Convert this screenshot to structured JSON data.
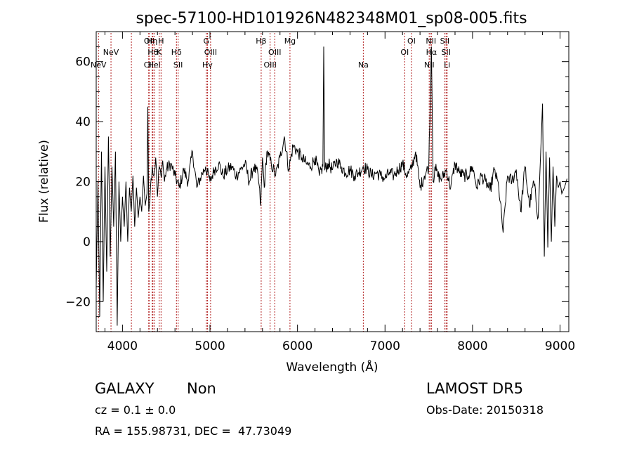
{
  "chart_data": {
    "type": "line",
    "title": "spec-57100-HD101926N482348M01_sp08-005.fits",
    "xlabel": "Wavelength (Å)",
    "ylabel": "Flux (relative)",
    "xlim": [
      3700,
      9100
    ],
    "ylim": [
      -30,
      70
    ],
    "xticks": [
      4000,
      5000,
      6000,
      7000,
      8000,
      9000
    ],
    "yticks": [
      -20,
      0,
      20,
      40,
      60
    ],
    "grid": false,
    "line_color": "#000000",
    "marker_color": "#b22222",
    "series": [
      {
        "x": [
          3700,
          3720,
          3740,
          3760,
          3780,
          3800,
          3820,
          3840,
          3860,
          3880,
          3900,
          3920,
          3940,
          3960,
          3980,
          4000,
          4020,
          4040,
          4060,
          4080,
          4100,
          4120,
          4140,
          4160,
          4180,
          4200,
          4220,
          4240,
          4260,
          4280,
          4290,
          4300,
          4320,
          4340,
          4360,
          4380,
          4400,
          4420,
          4440,
          4460,
          4480,
          4500,
          4550,
          4600,
          4650,
          4700,
          4750,
          4800,
          4850,
          4900,
          4950,
          5000,
          5050,
          5100,
          5150,
          5200,
          5250,
          5300,
          5350,
          5400,
          5450,
          5500,
          5550,
          5580,
          5600,
          5620,
          5650,
          5700,
          5750,
          5800,
          5850,
          5900,
          5950,
          6000,
          6050,
          6100,
          6150,
          6200,
          6250,
          6290,
          6300,
          6310,
          6350,
          6400,
          6450,
          6500,
          6550,
          6600,
          6650,
          6700,
          6750,
          6800,
          6850,
          6900,
          6950,
          7000,
          7050,
          7100,
          7150,
          7200,
          7250,
          7300,
          7350,
          7400,
          7450,
          7500,
          7530,
          7550,
          7570,
          7600,
          7650,
          7700,
          7750,
          7800,
          7850,
          7900,
          7950,
          8000,
          8050,
          8100,
          8150,
          8200,
          8250,
          8300,
          8350,
          8400,
          8450,
          8500,
          8550,
          8600,
          8650,
          8700,
          8750,
          8800,
          8820,
          8840,
          8860,
          8880,
          8900,
          8920,
          8940,
          8960,
          8980,
          9000,
          9020,
          9050,
          9080
        ],
        "y": [
          -15,
          20,
          -25,
          30,
          -20,
          25,
          -10,
          35,
          -5,
          25,
          5,
          30,
          -28,
          20,
          0,
          15,
          5,
          20,
          0,
          18,
          10,
          22,
          5,
          18,
          8,
          15,
          10,
          22,
          12,
          16,
          45,
          10,
          18,
          25,
          22,
          28,
          15,
          25,
          22,
          27,
          20,
          24,
          26,
          22,
          18,
          24,
          20,
          30,
          18,
          22,
          25,
          20,
          24,
          26,
          22,
          24,
          25,
          22,
          24,
          26,
          20,
          25,
          22,
          12,
          28,
          18,
          30,
          26,
          22,
          28,
          35,
          24,
          32,
          30,
          28,
          26,
          25,
          28,
          22,
          25,
          65,
          24,
          26,
          24,
          27,
          25,
          23,
          24,
          22,
          23,
          25,
          24,
          22,
          23,
          22,
          21,
          23,
          22,
          24,
          26,
          22,
          24,
          30,
          18,
          22,
          25,
          65,
          20,
          25,
          22,
          21,
          24,
          18,
          26,
          23,
          22,
          22,
          25,
          18,
          22,
          20,
          17,
          24,
          18,
          3,
          22,
          20,
          24,
          10,
          25,
          12,
          20,
          8,
          46,
          -5,
          30,
          -2,
          28,
          0,
          25,
          5,
          22,
          18,
          20,
          16,
          18,
          21
        ]
      }
    ],
    "line_markers": [
      {
        "x": 3726,
        "label": "NeV",
        "row": 3
      },
      {
        "x": 3869,
        "label": "NeV",
        "row": 2
      },
      {
        "x": 4102,
        "label": "",
        "row": 0
      },
      {
        "x": 4300,
        "label": "CII",
        "row": 3
      },
      {
        "x": 4305,
        "label": "OII",
        "row": 1
      },
      {
        "x": 4340,
        "label": "Hη",
        "row": 1
      },
      {
        "x": 4348,
        "label": "Hθ",
        "row": 2
      },
      {
        "x": 4364,
        "label": "HeI",
        "row": 3
      },
      {
        "x": 4420,
        "label": "K",
        "row": 2
      },
      {
        "x": 4441,
        "label": "H",
        "row": 1
      },
      {
        "x": 4617,
        "label": "Hδ",
        "row": 2
      },
      {
        "x": 4636,
        "label": "SII",
        "row": 3
      },
      {
        "x": 4958,
        "label": "G",
        "row": 1
      },
      {
        "x": 4971,
        "label": "Hγ",
        "row": 3
      },
      {
        "x": 5007,
        "label": "OIII",
        "row": 2
      },
      {
        "x": 5585,
        "label": "Hβ",
        "row": 1
      },
      {
        "x": 5687,
        "label": "OIII",
        "row": 3
      },
      {
        "x": 5740,
        "label": "OIII",
        "row": 2
      },
      {
        "x": 5914,
        "label": "Mg",
        "row": 1
      },
      {
        "x": 6752,
        "label": "Na",
        "row": 3
      },
      {
        "x": 7225,
        "label": "OI",
        "row": 2
      },
      {
        "x": 7302,
        "label": "OI",
        "row": 1
      },
      {
        "x": 7505,
        "label": "NII",
        "row": 3
      },
      {
        "x": 7525,
        "label": "NII",
        "row": 1
      },
      {
        "x": 7530,
        "label": "Hα",
        "row": 2
      },
      {
        "x": 7683,
        "label": "SII",
        "row": 1
      },
      {
        "x": 7698,
        "label": "SII",
        "row": 2
      },
      {
        "x": 7710,
        "label": "Li",
        "row": 3
      }
    ]
  },
  "info": {
    "class_label": "GALAXY",
    "subclass_label": "Non",
    "survey": "LAMOST DR5",
    "cz": "cz = 0.1 ± 0.0",
    "obs_date": "Obs-Date: 20150318",
    "radec": "RA = 155.98731, DEC =  47.73049"
  }
}
